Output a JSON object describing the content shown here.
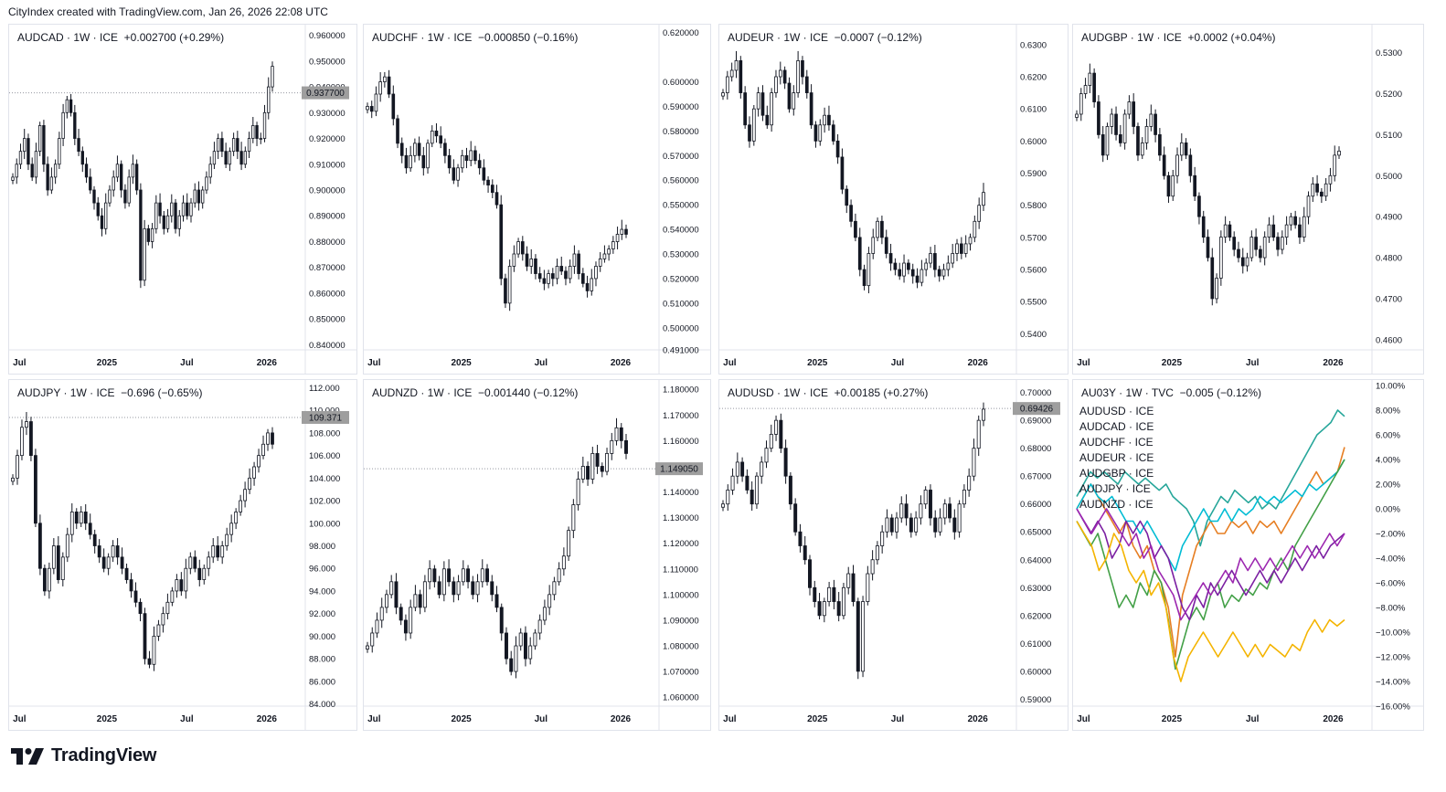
{
  "header": {
    "caption": "CityIndex created with TradingView.com, Jan 26, 2026 22:08 UTC"
  },
  "footer": {
    "brand": "TradingView"
  },
  "chart_data": [
    {
      "type": "candlestick",
      "title": "AUDCAD · 1W · ICE  +0.002700 (+0.29%)",
      "x_ticks": [
        "Jul",
        "2025",
        "Jul",
        "2026"
      ],
      "y_ticks": [
        "0.960000",
        "0.950000",
        "0.940000",
        "0.930000",
        "0.920000",
        "0.910000",
        "0.900000",
        "0.890000",
        "0.880000",
        "0.870000",
        "0.860000",
        "0.850000",
        "0.840000"
      ],
      "ylim": [
        0.838,
        0.962
      ],
      "price_label": "0.937700",
      "price_level": 0.9377,
      "ref_level": 0.9377,
      "closes": [
        0.905,
        0.91,
        0.915,
        0.92,
        0.91,
        0.905,
        0.915,
        0.925,
        0.91,
        0.9,
        0.905,
        0.91,
        0.92,
        0.93,
        0.935,
        0.93,
        0.92,
        0.915,
        0.91,
        0.905,
        0.9,
        0.895,
        0.89,
        0.885,
        0.895,
        0.9,
        0.905,
        0.91,
        0.9,
        0.895,
        0.905,
        0.91,
        0.9,
        0.865,
        0.885,
        0.88,
        0.885,
        0.895,
        0.89,
        0.885,
        0.89,
        0.895,
        0.885,
        0.89,
        0.895,
        0.89,
        0.895,
        0.9,
        0.895,
        0.9,
        0.905,
        0.91,
        0.915,
        0.92,
        0.915,
        0.91,
        0.915,
        0.92,
        0.915,
        0.91,
        0.915,
        0.92,
        0.925,
        0.92,
        0.92,
        0.93,
        0.94,
        0.948
      ]
    },
    {
      "type": "candlestick",
      "title": "AUDCHF · 1W · ICE  −0.000850 (−0.16%)",
      "x_ticks": [
        "Jul",
        "2025",
        "Jul",
        "2026"
      ],
      "y_ticks": [
        "0.620000",
        "0.600000",
        "0.590000",
        "0.580000",
        "0.570000",
        "0.560000",
        "0.550000",
        "0.540000",
        "0.530000",
        "0.520000",
        "0.510000",
        "0.500000",
        "0.491000"
      ],
      "ylim": [
        0.491,
        0.621
      ],
      "closes": [
        0.59,
        0.588,
        0.595,
        0.6,
        0.602,
        0.595,
        0.585,
        0.575,
        0.57,
        0.565,
        0.57,
        0.575,
        0.57,
        0.565,
        0.575,
        0.58,
        0.578,
        0.575,
        0.57,
        0.565,
        0.56,
        0.565,
        0.57,
        0.568,
        0.572,
        0.568,
        0.565,
        0.56,
        0.558,
        0.555,
        0.55,
        0.52,
        0.51,
        0.525,
        0.53,
        0.535,
        0.53,
        0.525,
        0.528,
        0.522,
        0.52,
        0.518,
        0.522,
        0.52,
        0.525,
        0.523,
        0.52,
        0.525,
        0.53,
        0.522,
        0.518,
        0.515,
        0.52,
        0.525,
        0.528,
        0.53,
        0.532,
        0.535,
        0.538,
        0.54,
        0.538
      ]
    },
    {
      "type": "candlestick",
      "title": "AUDEUR · 1W · ICE  −0.0007 (−0.12%)",
      "x_ticks": [
        "Jul",
        "2025",
        "Jul",
        "2026"
      ],
      "y_ticks": [
        "0.6300",
        "0.6200",
        "0.6100",
        "0.6000",
        "0.5900",
        "0.5800",
        "0.5700",
        "0.5600",
        "0.5500",
        "0.5400"
      ],
      "ylim": [
        0.535,
        0.6345
      ],
      "closes": [
        0.615,
        0.62,
        0.622,
        0.625,
        0.615,
        0.605,
        0.6,
        0.61,
        0.615,
        0.608,
        0.605,
        0.615,
        0.62,
        0.622,
        0.618,
        0.61,
        0.615,
        0.625,
        0.62,
        0.615,
        0.605,
        0.6,
        0.605,
        0.608,
        0.605,
        0.6,
        0.595,
        0.585,
        0.58,
        0.575,
        0.57,
        0.56,
        0.555,
        0.565,
        0.57,
        0.575,
        0.57,
        0.565,
        0.562,
        0.56,
        0.558,
        0.562,
        0.56,
        0.558,
        0.556,
        0.56,
        0.562,
        0.565,
        0.56,
        0.558,
        0.56,
        0.562,
        0.565,
        0.568,
        0.565,
        0.568,
        0.57,
        0.575,
        0.58,
        0.584
      ]
    },
    {
      "type": "candlestick",
      "title": "AUDGBP · 1W · ICE  +0.0002 (+0.04%)",
      "x_ticks": [
        "Jul",
        "2025",
        "Jul",
        "2026"
      ],
      "y_ticks": [
        "0.5300",
        "0.5200",
        "0.5100",
        "0.5000",
        "0.4900",
        "0.4800",
        "0.4700",
        "0.4600"
      ],
      "ylim": [
        0.4575,
        0.5355
      ],
      "closes": [
        0.515,
        0.52,
        0.522,
        0.525,
        0.518,
        0.51,
        0.505,
        0.512,
        0.515,
        0.51,
        0.508,
        0.515,
        0.518,
        0.512,
        0.505,
        0.508,
        0.512,
        0.515,
        0.51,
        0.505,
        0.5,
        0.495,
        0.5,
        0.505,
        0.508,
        0.505,
        0.5,
        0.495,
        0.49,
        0.485,
        0.48,
        0.47,
        0.475,
        0.485,
        0.488,
        0.485,
        0.482,
        0.48,
        0.478,
        0.48,
        0.485,
        0.482,
        0.48,
        0.485,
        0.488,
        0.485,
        0.482,
        0.485,
        0.488,
        0.49,
        0.488,
        0.485,
        0.49,
        0.495,
        0.498,
        0.496,
        0.495,
        0.498,
        0.5,
        0.505,
        0.506
      ]
    },
    {
      "type": "candlestick",
      "title": "AUDJPY · 1W · ICE  −0.696 (−0.65%)",
      "x_ticks": [
        "Jul",
        "2025",
        "Jul",
        "2026"
      ],
      "y_ticks": [
        "112.000",
        "110.000",
        "108.000",
        "106.000",
        "104.000",
        "102.000",
        "100.000",
        "98.000",
        "96.000",
        "94.000",
        "92.000",
        "90.000",
        "88.000",
        "86.000",
        "84.000"
      ],
      "ylim": [
        83.8,
        112.2
      ],
      "price_label": "109.371",
      "price_level": 109.371,
      "ref_level": 109.371,
      "closes": [
        104.0,
        106.0,
        108.5,
        109.0,
        106.0,
        100.0,
        96.0,
        94.0,
        96.0,
        98.0,
        95.0,
        97.0,
        99.0,
        101.0,
        100.0,
        101.0,
        100.0,
        99.0,
        98.0,
        97.0,
        96.0,
        97.0,
        98.0,
        97.0,
        96.0,
        95.0,
        94.0,
        93.0,
        92.0,
        88.0,
        87.5,
        90.0,
        91.0,
        92.0,
        93.0,
        94.0,
        95.0,
        94.0,
        96.0,
        97.0,
        96.0,
        95.0,
        96.0,
        97.0,
        98.0,
        97.0,
        98.0,
        99.0,
        100.0,
        101.0,
        102.0,
        103.0,
        104.0,
        105.0,
        106.0,
        107.0,
        108.0,
        107.0
      ]
    },
    {
      "type": "candlestick",
      "title": "AUDNZD · 1W · ICE  −0.001440 (−0.12%)",
      "x_ticks": [
        "Jul",
        "2025",
        "Jul",
        "2026"
      ],
      "y_ticks": [
        "1.180000",
        "1.170000",
        "1.160000",
        "1.140000",
        "1.130000",
        "1.120000",
        "1.110000",
        "1.100000",
        "1.090000",
        "1.080000",
        "1.070000",
        "1.060000"
      ],
      "ylim": [
        1.0565,
        1.1815
      ],
      "price_label": "1.149050",
      "price_level": 1.14905,
      "ref_level": 1.14905,
      "closes": [
        1.08,
        1.085,
        1.09,
        1.095,
        1.1,
        1.105,
        1.095,
        1.09,
        1.085,
        1.095,
        1.1,
        1.095,
        1.105,
        1.11,
        1.105,
        1.1,
        1.11,
        1.105,
        1.1,
        1.105,
        1.11,
        1.105,
        1.1,
        1.105,
        1.11,
        1.105,
        1.1,
        1.095,
        1.085,
        1.075,
        1.07,
        1.08,
        1.085,
        1.075,
        1.08,
        1.085,
        1.09,
        1.095,
        1.1,
        1.105,
        1.11,
        1.115,
        1.125,
        1.135,
        1.145,
        1.15,
        1.145,
        1.155,
        1.15,
        1.148,
        1.155,
        1.16,
        1.165,
        1.16,
        1.155
      ]
    },
    {
      "type": "candlestick",
      "title": "AUDUSD · 1W · ICE  +0.00185 (+0.27%)",
      "x_ticks": [
        "Jul",
        "2025",
        "Jul",
        "2026"
      ],
      "y_ticks": [
        "0.70000",
        "0.69000",
        "0.68000",
        "0.67000",
        "0.66000",
        "0.65000",
        "0.64000",
        "0.63000",
        "0.62000",
        "0.61000",
        "0.60000",
        "0.59000"
      ],
      "ylim": [
        0.5875,
        0.7025
      ],
      "price_label": "0.69426",
      "price_level": 0.69426,
      "ref_level": 0.69426,
      "closes": [
        0.66,
        0.665,
        0.67,
        0.675,
        0.67,
        0.665,
        0.66,
        0.67,
        0.675,
        0.68,
        0.685,
        0.69,
        0.68,
        0.67,
        0.66,
        0.65,
        0.645,
        0.64,
        0.63,
        0.625,
        0.62,
        0.625,
        0.63,
        0.625,
        0.62,
        0.63,
        0.635,
        0.625,
        0.6,
        0.625,
        0.635,
        0.64,
        0.645,
        0.65,
        0.655,
        0.65,
        0.655,
        0.66,
        0.655,
        0.65,
        0.655,
        0.66,
        0.665,
        0.655,
        0.65,
        0.655,
        0.66,
        0.655,
        0.65,
        0.66,
        0.665,
        0.67,
        0.68,
        0.69,
        0.694
      ]
    },
    {
      "type": "line",
      "title": "AU03Y · 1W · TVC  −0.005 (−0.12%)",
      "x_ticks": [
        "Jul",
        "2025",
        "Jul",
        "2026"
      ],
      "y_ticks": [
        "10.00%",
        "8.00%",
        "6.00%",
        "4.00%",
        "2.00%",
        "0.00%",
        "−2.00%",
        "−4.00%",
        "−6.00%",
        "−8.00%",
        "−10.00%",
        "−12.00%",
        "−14.00%",
        "−16.00%"
      ],
      "ylim": [
        -16.0,
        10.0
      ],
      "series": [
        {
          "name": "AUDUSD · ICE",
          "color": "#26a69a",
          "values": [
            1,
            2,
            3,
            2.5,
            3,
            2.5,
            2,
            3,
            2.5,
            2,
            2.5,
            2,
            1.5,
            2,
            1,
            0.5,
            0,
            -1,
            -3,
            -1,
            0,
            1,
            0.5,
            1.5,
            1,
            0.5,
            1,
            0,
            0.5,
            0,
            1,
            2,
            3,
            4,
            5,
            6,
            6.5,
            7,
            8,
            7.5
          ]
        },
        {
          "name": "AUDCAD · ICE",
          "color": "#e67e22",
          "values": [
            0,
            1,
            2,
            1,
            0,
            -1,
            -2,
            -1,
            -3,
            -4,
            -3,
            -5,
            -6,
            -8,
            -12,
            -7,
            -5,
            -3,
            -2,
            -1,
            -2,
            -2,
            -1,
            -1.5,
            -1,
            -2,
            -1,
            -1.5,
            -1,
            -2,
            -1,
            0,
            1,
            2,
            3,
            2,
            2.5,
            3,
            5
          ]
        },
        {
          "name": "AUDCHF · ICE",
          "color": "#00bcd4",
          "values": [
            0,
            1,
            2,
            1,
            0.5,
            1,
            0,
            -1,
            -1,
            -2,
            -1,
            -2,
            -3,
            -4,
            -5,
            -3,
            -2,
            -1,
            0,
            -1,
            -1,
            0,
            -1,
            0,
            -0.5,
            0,
            1,
            0.5,
            1,
            0.5,
            1,
            1.5,
            1,
            2,
            1.5,
            2,
            2.5,
            3,
            4
          ]
        },
        {
          "name": "AUDEUR · ICE",
          "color": "#43a047",
          "values": [
            -1,
            -2,
            -3,
            -2,
            -4,
            -6,
            -8,
            -7,
            -8,
            -6,
            -7,
            -5,
            -6,
            -9,
            -13,
            -11,
            -9,
            -8,
            -9,
            -7,
            -6,
            -8,
            -7,
            -7.5,
            -6.5,
            -7,
            -6,
            -6.5,
            -5,
            -4,
            -5,
            -3,
            -2,
            -1,
            0,
            1,
            2,
            3,
            4
          ]
        },
        {
          "name": "AUDGBP · ICE",
          "color": "#7b1fa2",
          "values": [
            0,
            -1,
            -2,
            -1,
            -2,
            -4,
            -3,
            -1,
            -2,
            -1,
            -2,
            -4,
            -3,
            -4,
            -6,
            -8,
            -9,
            -7,
            -8,
            -6,
            -7,
            -6,
            -5,
            -6,
            -7,
            -6,
            -5,
            -6,
            -5,
            -6,
            -5,
            -4,
            -5,
            -4,
            -3,
            -4,
            -3,
            -2.5,
            -2
          ]
        },
        {
          "name": "AUDJPY · ICE",
          "color": "#f4b400",
          "values": [
            -1,
            -2,
            -3,
            -5,
            -4,
            -2,
            -3,
            -5,
            -6,
            -5,
            -7,
            -6,
            -8,
            -12,
            -14,
            -12,
            -11,
            -10,
            -11,
            -12,
            -11,
            -10,
            -11,
            -12,
            -11,
            -12,
            -11,
            -11.5,
            -12,
            -11,
            -11.5,
            -10,
            -9,
            -10,
            -9,
            -9.5,
            -9
          ]
        },
        {
          "name": "AUDNZD · ICE",
          "color": "#9c27b0",
          "values": [
            0,
            -1,
            -2,
            -1,
            0,
            -1,
            -2,
            -3,
            -2,
            -4,
            -3,
            -5,
            -6,
            -7,
            -9,
            -8,
            -7,
            -6,
            -7,
            -6,
            -5,
            -6,
            -4,
            -5,
            -4,
            -5,
            -4,
            -5,
            -4,
            -3,
            -4,
            -3,
            -4,
            -3,
            -2,
            -3,
            -2
          ]
        }
      ]
    }
  ]
}
